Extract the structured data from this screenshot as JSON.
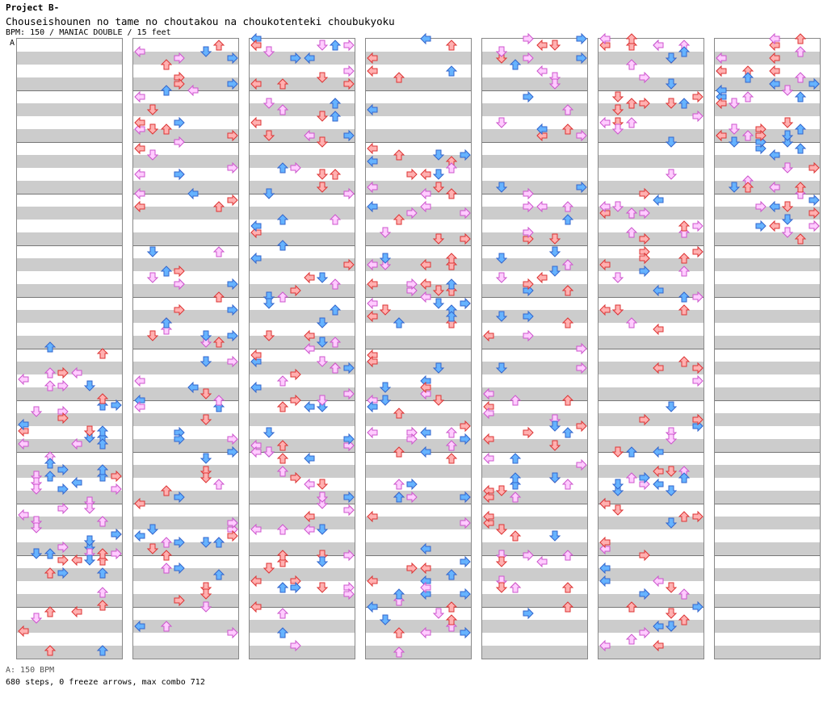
{
  "header": {
    "project": "Project B-",
    "song_title": "Chouseishounen no tame no choutakou na choukotenteki choubukyoku",
    "info": "BPM: 150 / MANIAC DOUBLE / 15 feet"
  },
  "marker": "A",
  "footer": {
    "bpm_line": "A: 150 BPM",
    "stats_line": "680 steps, 0 freeze arrows, max combo 712"
  },
  "colors": {
    "red_note": "#ffb0b0",
    "red_stroke": "#dd3333",
    "blue_note": "#66b3ff",
    "blue_stroke": "#3366cc",
    "pink_note": "#ffccff",
    "pink_stroke": "#cc55cc",
    "stripe_light": "#ffffff",
    "stripe_dark": "#cccccc"
  },
  "icons": [
    "arrow-left-icon",
    "arrow-down-icon",
    "arrow-up-icon",
    "arrow-right-icon"
  ]
}
